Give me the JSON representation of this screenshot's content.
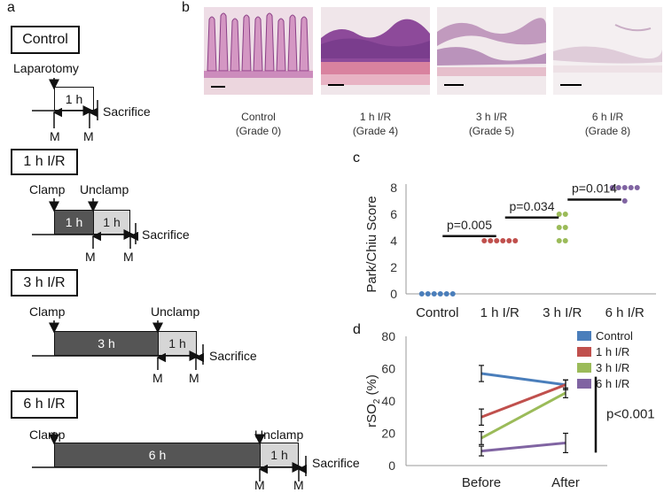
{
  "panels": {
    "a": "a",
    "b": "b",
    "c": "c",
    "d": "d"
  },
  "timeline": {
    "control": {
      "title": "Control",
      "event1": "Laparotomy",
      "block1": "1 h",
      "sacrifice": "Sacrifice",
      "m1": "M",
      "m2": "M"
    },
    "ir1": {
      "title": "1 h I/R",
      "clamp": "Clamp",
      "unclamp": "Unclamp",
      "block1": "1 h",
      "block2": "1 h",
      "sacrifice": "Sacrifice",
      "m1": "M",
      "m2": "M"
    },
    "ir3": {
      "title": "3 h I/R",
      "clamp": "Clamp",
      "unclamp": "Unclamp",
      "block1": "3 h",
      "block2": "1 h",
      "sacrifice": "Sacrifice",
      "m1": "M",
      "m2": "M"
    },
    "ir6": {
      "title": "6 h I/R",
      "clamp": "Clamp",
      "unclamp": "Unclamp",
      "block1": "6 h",
      "block2": "1 h",
      "sacrifice": "Sacrifice",
      "m1": "M",
      "m2": "M"
    }
  },
  "histology": [
    {
      "line1": "Control",
      "line2": "(Grade 0)"
    },
    {
      "line1": "1 h I/R",
      "line2": "(Grade 4)"
    },
    {
      "line1": "3 h I/R",
      "line2": "(Grade 5)"
    },
    {
      "line1": "6 h I/R",
      "line2": "(Grade 8)"
    }
  ],
  "chart_data": [
    {
      "type": "scatter",
      "ylabel": "Park/Chiu Score",
      "categories": [
        "Control",
        "1 h I/R",
        "3 h I/R",
        "6 h I/R"
      ],
      "ylim": [
        0,
        8
      ],
      "yticks": [
        "0",
        "2",
        "4",
        "6",
        "8"
      ],
      "colors": [
        "#4a7ebb",
        "#c0504d",
        "#9bbb59",
        "#8064a2"
      ],
      "points": [
        [
          0,
          0,
          0,
          0,
          0,
          0
        ],
        [
          4,
          4,
          4,
          4,
          4,
          4
        ],
        [
          6,
          6,
          5,
          5,
          4,
          4
        ],
        [
          8,
          8,
          8,
          8,
          8,
          7
        ]
      ],
      "annotations": [
        "p=0.005",
        "p=0.034",
        "p=0.014"
      ]
    },
    {
      "type": "line",
      "ylabel_main": "rSO",
      "ylabel_sub": "2",
      "ylabel_unit": " (%)",
      "x": [
        "Before",
        "After"
      ],
      "ylim": [
        0,
        80
      ],
      "yticks": [
        "0",
        "20",
        "40",
        "60",
        "80"
      ],
      "series": [
        {
          "name": "Control",
          "color": "#4a7ebb",
          "values": [
            57,
            50
          ],
          "err": [
            5,
            3
          ]
        },
        {
          "name": "1 h I/R",
          "color": "#c0504d",
          "values": [
            30,
            50
          ],
          "err": [
            5,
            3
          ]
        },
        {
          "name": "3 h I/R",
          "color": "#9bbb59",
          "values": [
            17,
            45
          ],
          "err": [
            4,
            3
          ]
        },
        {
          "name": "6 h I/R",
          "color": "#8064a2",
          "values": [
            9,
            14
          ],
          "err": [
            3,
            6
          ]
        }
      ],
      "annotation": "p<0.001"
    }
  ]
}
